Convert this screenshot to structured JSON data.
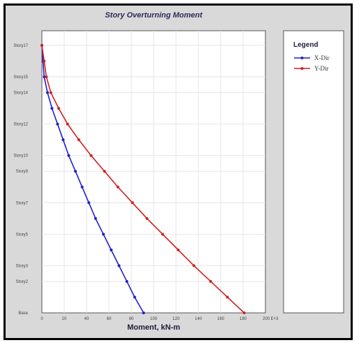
{
  "chart_data": {
    "type": "line",
    "title": "Story Overturning Moment",
    "xlabel": "Moment, kN-m",
    "ylabel": "",
    "xlim": [
      0,
      200
    ],
    "x_ticks": [
      "0",
      "20",
      "40",
      "60",
      "80",
      "100",
      "120",
      "140",
      "160",
      "180",
      "200 E+3"
    ],
    "y_ticks": [
      {
        "label": "Base",
        "value": 0
      },
      {
        "label": "Story2",
        "value": 2
      },
      {
        "label": "Story3",
        "value": 3
      },
      {
        "label": "Story5",
        "value": 5
      },
      {
        "label": "Story7",
        "value": 7
      },
      {
        "label": "Story9",
        "value": 9
      },
      {
        "label": "Story10",
        "value": 10
      },
      {
        "label": "Story12",
        "value": 12
      },
      {
        "label": "Story14",
        "value": 14
      },
      {
        "label": "Story15",
        "value": 15
      },
      {
        "label": "Story17",
        "value": 17
      }
    ],
    "ylim": [
      0,
      17
    ],
    "grid": true,
    "legend_position": "right panel",
    "series": [
      {
        "name": "X-Dir",
        "color": "#1f1fd0",
        "points": [
          {
            "x": 0,
            "y": 17
          },
          {
            "x": 1,
            "y": 16
          },
          {
            "x": 2,
            "y": 15
          },
          {
            "x": 5,
            "y": 14
          },
          {
            "x": 9,
            "y": 13
          },
          {
            "x": 14,
            "y": 12
          },
          {
            "x": 19,
            "y": 11
          },
          {
            "x": 24,
            "y": 10
          },
          {
            "x": 30,
            "y": 9
          },
          {
            "x": 36,
            "y": 8
          },
          {
            "x": 42,
            "y": 7
          },
          {
            "x": 48,
            "y": 6
          },
          {
            "x": 55,
            "y": 5
          },
          {
            "x": 62,
            "y": 4
          },
          {
            "x": 69,
            "y": 3
          },
          {
            "x": 76,
            "y": 2
          },
          {
            "x": 83,
            "y": 1
          },
          {
            "x": 91,
            "y": 0
          }
        ]
      },
      {
        "name": "Y-Dir",
        "color": "#d01f1f",
        "points": [
          {
            "x": 0,
            "y": 17
          },
          {
            "x": 2,
            "y": 16
          },
          {
            "x": 4,
            "y": 15
          },
          {
            "x": 8,
            "y": 14
          },
          {
            "x": 15,
            "y": 13
          },
          {
            "x": 23,
            "y": 12
          },
          {
            "x": 33,
            "y": 11
          },
          {
            "x": 44,
            "y": 10
          },
          {
            "x": 56,
            "y": 9
          },
          {
            "x": 68,
            "y": 8
          },
          {
            "x": 81,
            "y": 7
          },
          {
            "x": 94,
            "y": 6
          },
          {
            "x": 108,
            "y": 5
          },
          {
            "x": 122,
            "y": 4
          },
          {
            "x": 136,
            "y": 3
          },
          {
            "x": 151,
            "y": 2
          },
          {
            "x": 166,
            "y": 1
          },
          {
            "x": 181,
            "y": 0
          }
        ]
      }
    ]
  },
  "legend": {
    "title": "Legend"
  }
}
